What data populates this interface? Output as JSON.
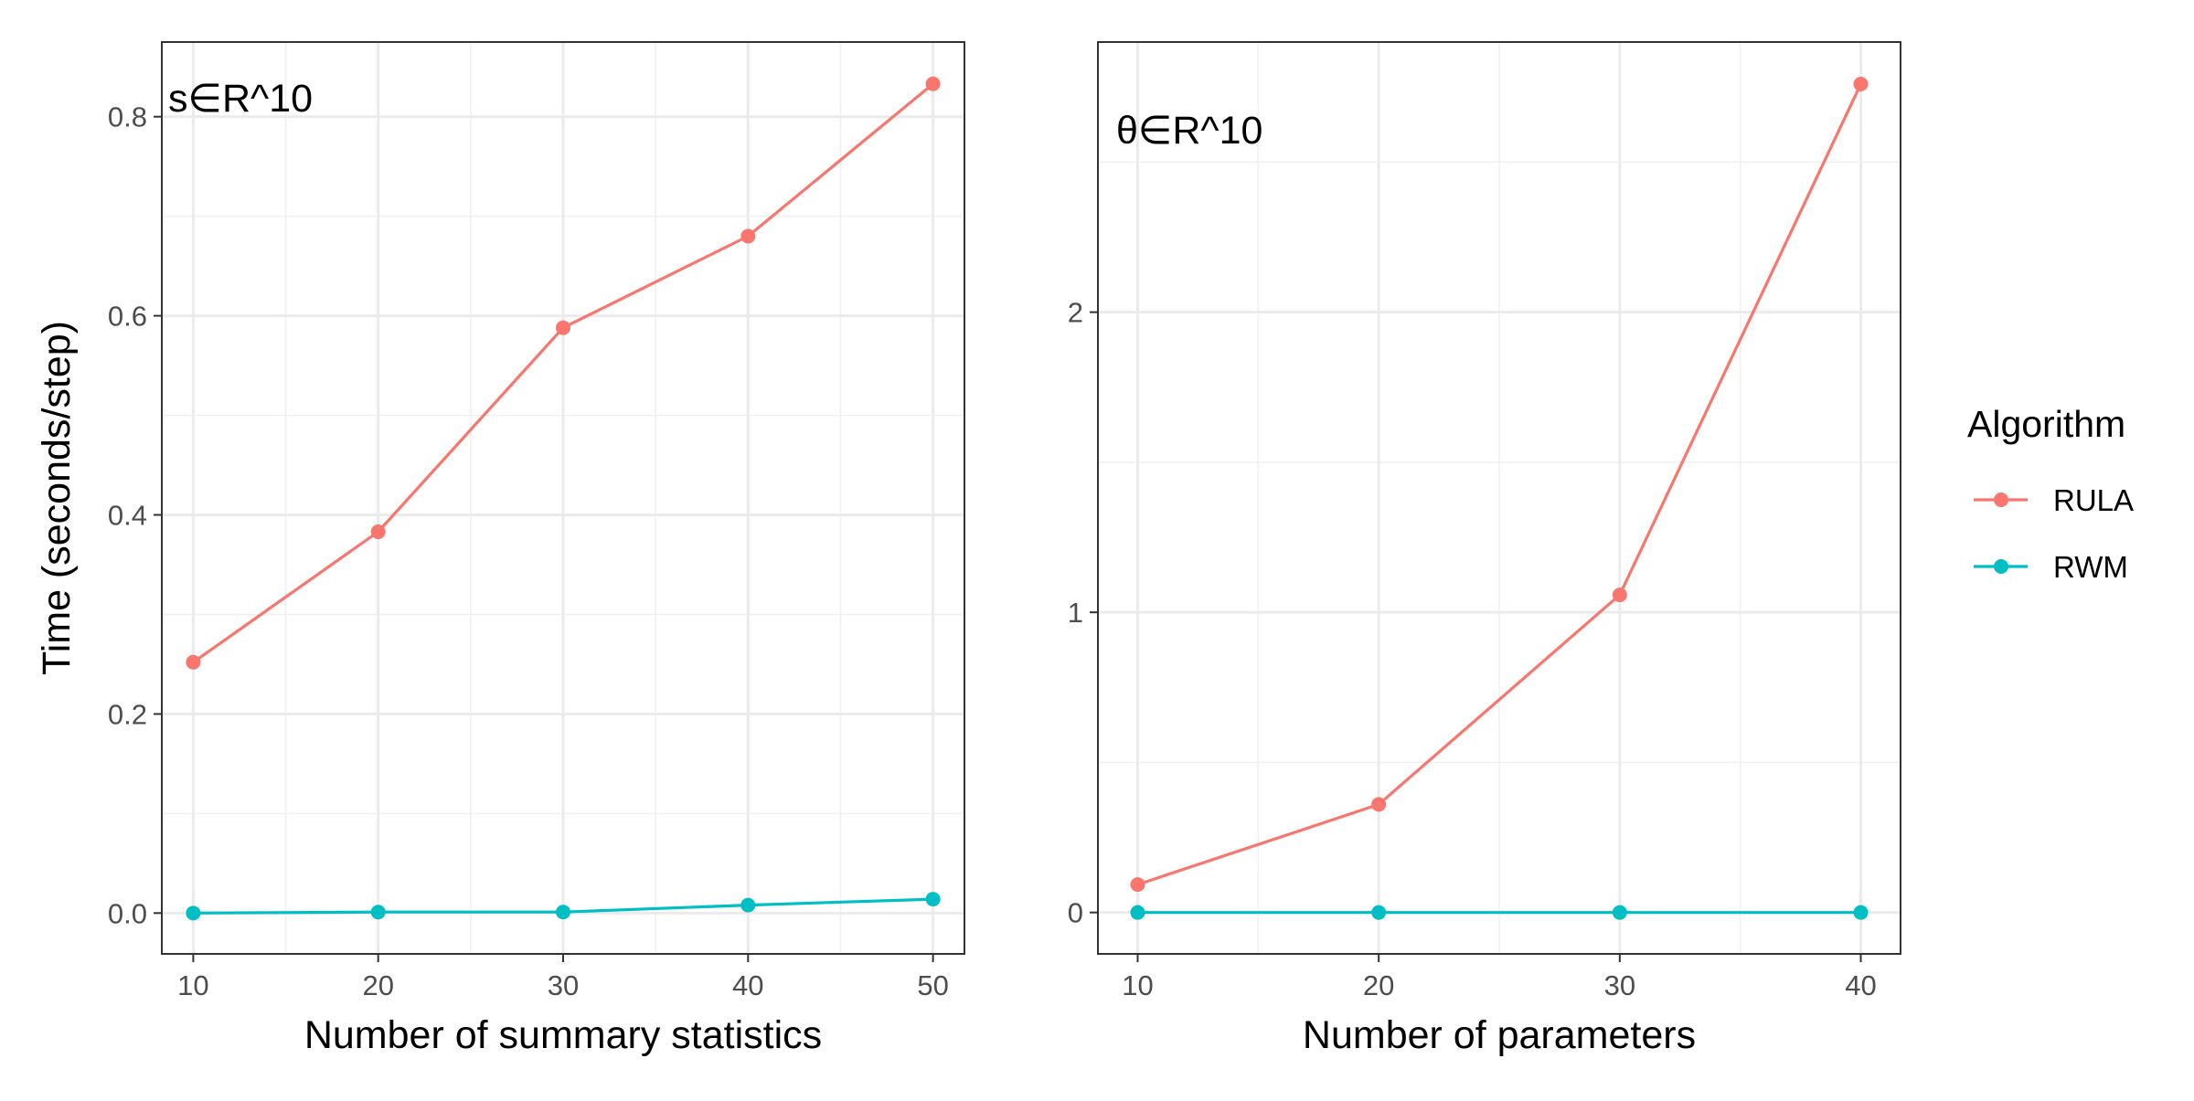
{
  "legend": {
    "title": "Algorithm",
    "items": [
      {
        "label": "RULA",
        "color": "#F8766D"
      },
      {
        "label": "RWM",
        "color": "#00BFC4"
      }
    ]
  },
  "chart_data": [
    {
      "type": "line",
      "tag": "s∈R^10",
      "xlabel": "Number of summary statistics",
      "ylabel": "Time (seconds/step)",
      "x": [
        10,
        20,
        30,
        40,
        50
      ],
      "xticks": [
        10,
        20,
        30,
        40,
        50
      ],
      "xtick_labels": [
        "10",
        "20",
        "30",
        "40",
        "50"
      ],
      "yticks": [
        0.0,
        0.2,
        0.4,
        0.6,
        0.8
      ],
      "ytick_labels": [
        "0.0",
        "0.2",
        "0.4",
        "0.6",
        "0.8"
      ],
      "xlim": [
        8.3,
        51.7
      ],
      "ylim": [
        -0.041,
        0.875
      ],
      "grid": true,
      "series": [
        {
          "name": "RULA",
          "color": "#F8766D",
          "values": [
            0.252,
            0.383,
            0.588,
            0.68,
            0.833
          ]
        },
        {
          "name": "RWM",
          "color": "#00BFC4",
          "values": [
            0.0,
            0.001,
            0.001,
            0.008,
            0.014
          ]
        }
      ]
    },
    {
      "type": "line",
      "tag": "θ∈R^10",
      "xlabel": "Number of parameters",
      "ylabel": "",
      "x": [
        10,
        20,
        30,
        40
      ],
      "xticks": [
        10,
        20,
        30,
        40
      ],
      "xtick_labels": [
        "10",
        "20",
        "30",
        "40"
      ],
      "yticks": [
        0,
        1,
        2
      ],
      "ytick_labels": [
        "0",
        "1",
        "2"
      ],
      "xlim": [
        8.35,
        41.65
      ],
      "ylim": [
        -0.138,
        2.9
      ],
      "grid": true,
      "series": [
        {
          "name": "RULA",
          "color": "#F8766D",
          "values": [
            0.093,
            0.36,
            1.058,
            2.76
          ]
        },
        {
          "name": "RWM",
          "color": "#00BFC4",
          "values": [
            0.0,
            0.0,
            0.0,
            0.0
          ]
        }
      ]
    }
  ]
}
